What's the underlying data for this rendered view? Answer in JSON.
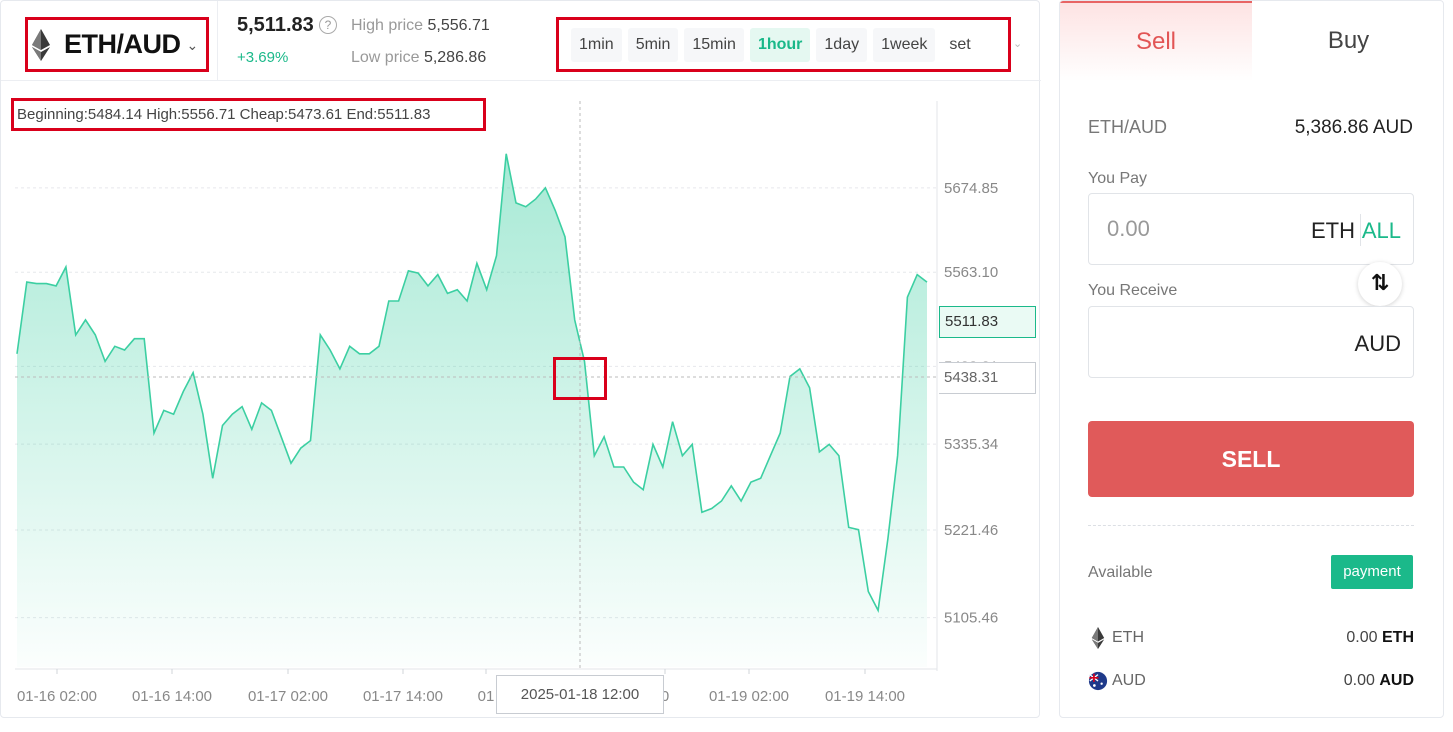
{
  "header": {
    "pair": "ETH/AUD",
    "price": "5,511.83",
    "change": "+3.69%",
    "high_label": "High price",
    "high_value": "5,556.71",
    "low_label": "Low price",
    "low_value": "5,286.86"
  },
  "intervals": {
    "items": [
      {
        "label": "1min"
      },
      {
        "label": "5min"
      },
      {
        "label": "15min"
      },
      {
        "label": "1hour"
      },
      {
        "label": "1day"
      },
      {
        "label": "1week"
      },
      {
        "label": "set"
      }
    ],
    "selected": "1hour"
  },
  "ohlc": {
    "text": "Beginning:5484.14  High:5556.71  Cheap:5473.61  End:5511.83"
  },
  "chart_data": {
    "type": "area",
    "series_color": "#3ccfa2",
    "y_ticks": [
      "5674.85",
      "5563.10",
      "5438.31",
      "5335.34",
      "5221.46",
      "5105.46"
    ],
    "x_ticks": [
      "01-16 02:00",
      "01-16 14:00",
      "01-17 02:00",
      "01-17 14:00",
      "01",
      "0",
      "01-19 02:00",
      "01-19 14:00"
    ],
    "crosshair_time": "2025-01-18 12:00",
    "crosshair_price": "5438.31",
    "last_price": "5511.83",
    "ylim": [
      5040,
      5790
    ],
    "values": [
      5455,
      5550,
      5548,
      5548,
      5545,
      5570,
      5480,
      5500,
      5480,
      5445,
      5465,
      5460,
      5475,
      5475,
      5350,
      5380,
      5375,
      5405,
      5430,
      5375,
      5290,
      5360,
      5375,
      5385,
      5355,
      5390,
      5380,
      5345,
      5310,
      5330,
      5340,
      5480,
      5460,
      5435,
      5465,
      5455,
      5455,
      5465,
      5525,
      5525,
      5565,
      5562,
      5545,
      5560,
      5535,
      5540,
      5525,
      5575,
      5540,
      5585,
      5720,
      5655,
      5650,
      5660,
      5675,
      5645,
      5610,
      5500,
      5445,
      5320,
      5345,
      5305,
      5305,
      5285,
      5275,
      5335,
      5305,
      5365,
      5320,
      5335,
      5245,
      5250,
      5260,
      5280,
      5260,
      5285,
      5290,
      5320,
      5350,
      5425,
      5435,
      5410,
      5325,
      5335,
      5320,
      5225,
      5222,
      5140,
      5115,
      5210,
      5320,
      5530,
      5560,
      5550
    ]
  },
  "trade": {
    "tab_sell": "Sell",
    "tab_buy": "Buy",
    "pair": "ETH/AUD",
    "rate": "5,386.86 AUD",
    "pay_label": "You Pay",
    "pay_placeholder": "0.00",
    "pay_unit": "ETH",
    "all_label": "ALL",
    "swap_glyph": "⇅",
    "receive_label": "You Receive",
    "receive_unit": "AUD",
    "sell_button": "SELL",
    "available_label": "Available",
    "payment_button": "payment",
    "balances": [
      {
        "currency": "ETH",
        "amount": "0.00",
        "unit": "ETH"
      },
      {
        "currency": "AUD",
        "amount": "0.00",
        "unit": "AUD"
      }
    ]
  },
  "colors": {
    "accent_green": "#1bb98a",
    "sell_red": "#e05a5a",
    "highlight_red": "#d9001b"
  }
}
